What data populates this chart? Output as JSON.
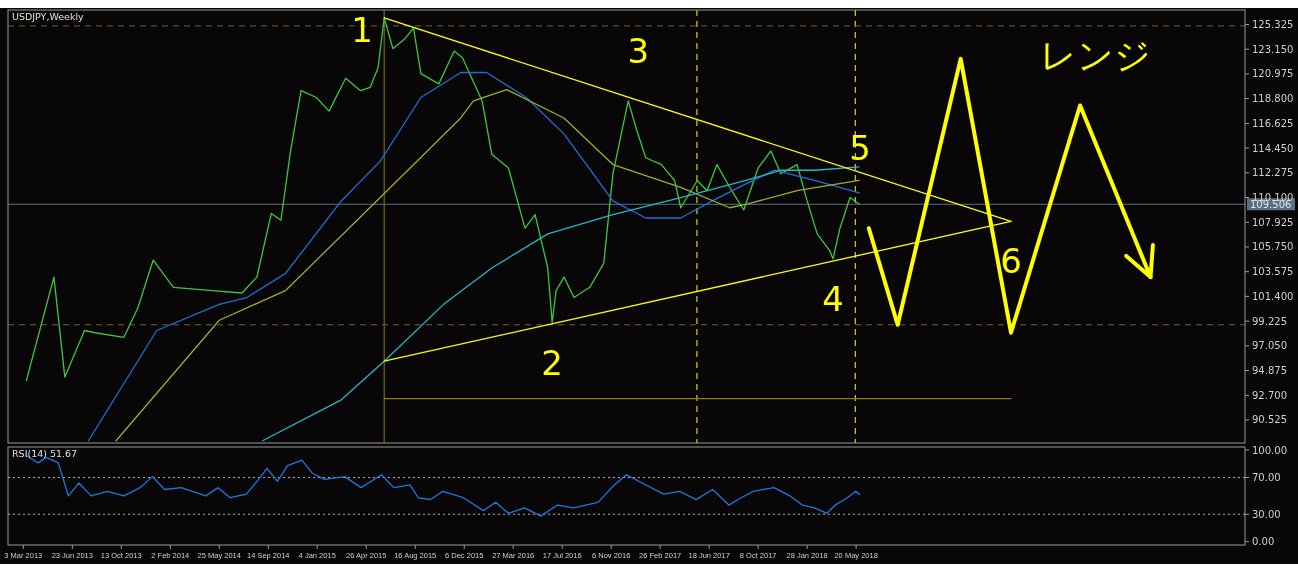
{
  "chart_data": [
    {
      "type": "line",
      "title": "USDJPY,Weekly",
      "xlim": [
        "2013-01-27",
        "2020-10-25"
      ],
      "ylim": [
        88.5,
        126.6
      ],
      "tick_labels": "y",
      "yticks": [
        {
          "value": 90.525,
          "label": "90.525"
        },
        {
          "value": 92.7,
          "label": "92.700"
        },
        {
          "value": 94.875,
          "label": "94.875"
        },
        {
          "value": 97.05,
          "label": "97.050"
        },
        {
          "value": 99.225,
          "label": "99.225"
        },
        {
          "value": 101.4,
          "label": "101.400"
        },
        {
          "value": 103.575,
          "label": "103.575"
        },
        {
          "value": 105.75,
          "label": "105.750"
        },
        {
          "value": 107.925,
          "label": "107.925"
        },
        {
          "value": 110.1,
          "label": "110.100"
        },
        {
          "value": 112.275,
          "label": "112.275"
        },
        {
          "value": 114.45,
          "label": "114.450"
        },
        {
          "value": 116.625,
          "label": "116.625"
        },
        {
          "value": 118.8,
          "label": "118.800"
        },
        {
          "value": 120.975,
          "label": "120.975"
        },
        {
          "value": 123.15,
          "label": "123.150"
        },
        {
          "value": 125.325,
          "label": "125.325"
        }
      ],
      "series": [
        {
          "color": "#3cc83c",
          "x": [
            "2013-03-10",
            "2013-05-12",
            "2013-06-06",
            "2013-07-21",
            "2013-08-14",
            "2013-10-19",
            "2013-11-20",
            "2013-12-25",
            "2014-02-09",
            "2014-05-09",
            "2014-07-16",
            "2014-08-19",
            "2014-09-21",
            "2014-10-13",
            "2014-11-04",
            "2014-11-28",
            "2015-01-02",
            "2015-01-31",
            "2015-03-10",
            "2015-04-13",
            "2015-05-05",
            "2015-05-23",
            "2015-06-06",
            "2015-06-26",
            "2015-07-24",
            "2015-08-12",
            "2015-08-29",
            "2015-10-09",
            "2015-11-13",
            "2015-12-02",
            "2016-01-16",
            "2016-02-07",
            "2016-03-16",
            "2016-04-23",
            "2016-05-16",
            "2016-06-14",
            "2016-06-24",
            "2016-07-03",
            "2016-07-21",
            "2016-08-13",
            "2016-09-18",
            "2016-10-20",
            "2016-11-10",
            "2016-12-10",
            "2016-12-15",
            "2017-01-02",
            "2017-01-24",
            "2017-03-01",
            "2017-03-31",
            "2017-04-14",
            "2017-05-22",
            "2017-06-13",
            "2017-07-06",
            "2017-08-04",
            "2017-09-05",
            "2017-10-08",
            "2017-11-06",
            "2017-11-29",
            "2018-01-05",
            "2018-01-28",
            "2018-02-20",
            "2018-03-21",
            "2018-03-28",
            "2018-04-13",
            "2018-05-06",
            "2018-05-27"
          ],
          "values": [
            94.0,
            103.1,
            94.3,
            98.4,
            98.2,
            97.8,
            100.4,
            104.6,
            102.2,
            101.9,
            101.7,
            103.1,
            108.7,
            108.1,
            114.2,
            119.5,
            118.9,
            117.7,
            120.6,
            119.5,
            119.8,
            121.5,
            125.9,
            123.2,
            124.1,
            125.0,
            121.0,
            120.1,
            123.0,
            122.4,
            118.6,
            113.9,
            112.7,
            107.4,
            108.6,
            103.9,
            99.1,
            101.9,
            103.1,
            101.3,
            102.2,
            104.3,
            112.2,
            117.7,
            118.6,
            116.2,
            113.6,
            113.0,
            111.6,
            109.2,
            111.6,
            110.7,
            113.0,
            111.0,
            109.0,
            112.7,
            114.2,
            112.2,
            113.0,
            109.8,
            106.9,
            105.4,
            104.7,
            107.4,
            110.1,
            109.5
          ]
        },
        {
          "color": "#1e70d8",
          "x": [
            "2013-07-30",
            "2014-01-02",
            "2014-05-25",
            "2014-07-27",
            "2014-10-23",
            "2015-02-28",
            "2015-05-28",
            "2015-08-29",
            "2015-11-28",
            "2016-01-26",
            "2016-04-26",
            "2016-07-21",
            "2016-11-10",
            "2017-01-24",
            "2017-04-14",
            "2017-06-25",
            "2017-09-10",
            "2017-11-14",
            "2018-02-14",
            "2018-05-27"
          ],
          "values": [
            88.7,
            98.4,
            100.7,
            101.3,
            103.4,
            109.8,
            113.3,
            118.9,
            121.1,
            121.1,
            118.9,
            115.7,
            109.8,
            108.3,
            108.3,
            109.8,
            111.3,
            112.5,
            111.6,
            110.5
          ]
        },
        {
          "color": "#9aae2a",
          "x": [
            "2013-10-01",
            "2014-05-25",
            "2014-10-23",
            "2015-05-28",
            "2015-11-28",
            "2015-12-27",
            "2016-03-12",
            "2016-07-21",
            "2016-11-10",
            "2017-04-14",
            "2017-08-04",
            "2017-09-10",
            "2018-01-05",
            "2018-05-27"
          ],
          "values": [
            88.7,
            99.3,
            101.9,
            110.1,
            117.1,
            118.6,
            119.6,
            117.1,
            113.0,
            111.0,
            109.2,
            109.5,
            110.7,
            111.6
          ]
        },
        {
          "color": "#22b8c8",
          "x": [
            "2014-09-01",
            "2015-02-28",
            "2015-06-06",
            "2015-10-20",
            "2016-02-07",
            "2016-06-14",
            "2016-11-10",
            "2017-04-14",
            "2017-09-10",
            "2017-11-29",
            "2018-02-14",
            "2018-05-27"
          ],
          "values": [
            88.7,
            92.3,
            95.7,
            100.7,
            103.9,
            106.9,
            108.6,
            110.1,
            111.6,
            112.5,
            112.5,
            112.8
          ]
        },
        {
          "color": "#ffff00",
          "x": [
            "2015-06-06",
            "2019-05-09"
          ],
          "values": [
            125.9,
            108.0
          ]
        },
        {
          "color": "#ffff00",
          "x": [
            "2015-06-06",
            "2019-05-09"
          ],
          "values": [
            95.7,
            108.0
          ]
        },
        {
          "color": "#8c7a14",
          "x": [
            "2015-06-06",
            "2016-05-25",
            "2017-05-21",
            "2018-05-18",
            "2019-05-09"
          ],
          "values": [
            92.4,
            92.4,
            92.4,
            92.4,
            92.4
          ]
        },
        {
          "color": "#ffff00",
          "x": [
            "2018-06-18",
            "2018-08-23",
            "2019-01-14",
            "2019-05-09",
            "2019-10-14",
            "2020-03-23"
          ],
          "values": [
            107.4,
            98.9,
            122.3,
            98.2,
            118.2,
            103.1
          ]
        }
      ],
      "ref_lines": [
        {
          "axis": "x",
          "value": "2017-05-21",
          "color": "#ffff00",
          "line_style": "dashed"
        },
        {
          "axis": "x",
          "value": "2018-05-18",
          "color": "#ffff00",
          "line_style": "dashed"
        },
        {
          "axis": "x",
          "value": "2015-06-06",
          "color": "#8c7a14",
          "line_style": "solid"
        },
        {
          "axis": "y",
          "value": 125.2,
          "color": "#6e6420",
          "line_style": "dashed"
        },
        {
          "axis": "y",
          "value": 98.9,
          "color": "#6e6420",
          "line_style": "dashed"
        },
        {
          "axis": "y",
          "value": 109.506,
          "label": "109.506",
          "color": "#5a6e82",
          "line_style": "solid"
        }
      ],
      "annotations": [
        {
          "text": "1",
          "x": "2015-06-06",
          "y": 125.9
        },
        {
          "text": "2",
          "x": "2016-06-24",
          "y": 99.1
        },
        {
          "text": "3",
          "x": "2016-12-15",
          "y": 118.6
        },
        {
          "text": "4",
          "x": "2018-03-28",
          "y": 104.7
        },
        {
          "text": "5",
          "x": "2018-05-06",
          "y": 110.1
        },
        {
          "text": "6",
          "x": "2019-05-09",
          "y": 108.0
        },
        "レンジ"
      ]
    },
    {
      "type": "line",
      "title": "RSI(14) 51.67",
      "xlim": [
        "2013-01-27",
        "2020-10-25"
      ],
      "ylim": [
        -3.5,
        103.3
      ],
      "yticks": [
        {
          "value": 0,
          "label": "0.00"
        },
        {
          "value": 30,
          "label": "30.00"
        },
        {
          "value": 70,
          "label": "70.00"
        },
        {
          "value": 100,
          "label": "100.00"
        }
      ],
      "xticks": [
        {
          "value": "2013-03-03",
          "label": "3 Mar 2013"
        },
        {
          "value": "2013-06-23",
          "label": "23 Jun 2013"
        },
        {
          "value": "2013-10-13",
          "label": "13 Oct 2013"
        },
        {
          "value": "2014-02-02",
          "label": "2 Feb 2014"
        },
        {
          "value": "2014-05-25",
          "label": "25 May 2014"
        },
        {
          "value": "2014-09-14",
          "label": "14 Sep 2014"
        },
        {
          "value": "2015-01-04",
          "label": "4 Jan 2015"
        },
        {
          "value": "2015-04-26",
          "label": "26 Apr 2015"
        },
        {
          "value": "2015-08-16",
          "label": "16 Aug 2015"
        },
        {
          "value": "2015-12-06",
          "label": "6 Dec 2015"
        },
        {
          "value": "2016-03-27",
          "label": "27 Mar 2016"
        },
        {
          "value": "2016-07-17",
          "label": "17 Jul 2016"
        },
        {
          "value": "2016-11-06",
          "label": "6 Nov 2016"
        },
        {
          "value": "2017-02-26",
          "label": "26 Feb 2017"
        },
        {
          "value": "2017-06-18",
          "label": "18 Jun 2017"
        },
        {
          "value": "2017-10-08",
          "label": "8 Oct 2017"
        },
        {
          "value": "2018-01-28",
          "label": "28 Jan 2018"
        },
        {
          "value": "2018-05-20",
          "label": "20 May 2018"
        }
      ],
      "series": [
        {
          "color": "#1e78e0",
          "x": [
            "2013-03-09",
            "2013-04-06",
            "2013-04-24",
            "2013-05-22",
            "2013-06-14",
            "2013-07-08",
            "2013-08-05",
            "2013-09-11",
            "2013-10-19",
            "2013-11-25",
            "2013-12-23",
            "2014-01-20",
            "2014-02-27",
            "2014-04-24",
            "2014-05-22",
            "2014-06-19",
            "2014-07-26",
            "2014-08-23",
            "2014-09-11",
            "2014-10-05",
            "2014-10-28",
            "2014-11-30",
            "2014-12-23",
            "2015-01-20",
            "2015-03-08",
            "2015-04-14",
            "2015-05-31",
            "2015-06-28",
            "2015-08-04",
            "2015-08-23",
            "2015-09-20",
            "2015-10-18",
            "2015-12-04",
            "2016-01-19",
            "2016-02-16",
            "2016-03-16",
            "2016-04-22",
            "2016-05-29",
            "2016-07-06",
            "2016-08-12",
            "2016-10-07",
            "2016-11-13",
            "2016-12-11",
            "2017-01-08",
            "2017-03-06",
            "2017-04-12",
            "2017-05-19",
            "2017-06-26",
            "2017-08-02",
            "2017-08-30",
            "2017-09-27",
            "2017-11-13",
            "2017-12-20",
            "2018-01-17",
            "2018-02-14",
            "2018-03-14",
            "2018-04-02",
            "2018-04-30",
            "2018-05-19",
            "2018-05-28"
          ],
          "values": [
            94,
            86,
            92,
            86,
            50,
            64,
            50,
            55,
            50,
            59,
            71,
            57,
            59,
            50,
            59,
            48,
            52,
            68,
            80,
            66,
            83,
            89,
            75,
            68,
            71,
            59,
            73,
            59,
            62,
            48,
            46,
            55,
            48,
            34,
            43,
            31,
            37,
            28,
            40,
            37,
            43,
            62,
            73,
            66,
            52,
            55,
            46,
            57,
            40,
            48,
            55,
            59,
            50,
            40,
            37,
            31,
            40,
            48,
            55,
            51.67
          ]
        }
      ],
      "ref_lines": [
        {
          "axis": "y",
          "value": 70,
          "color": "#b0b0b0",
          "line_style": "dotted"
        },
        {
          "axis": "y",
          "value": 30,
          "color": "#b0b0b0",
          "line_style": "dotted"
        }
      ]
    }
  ]
}
